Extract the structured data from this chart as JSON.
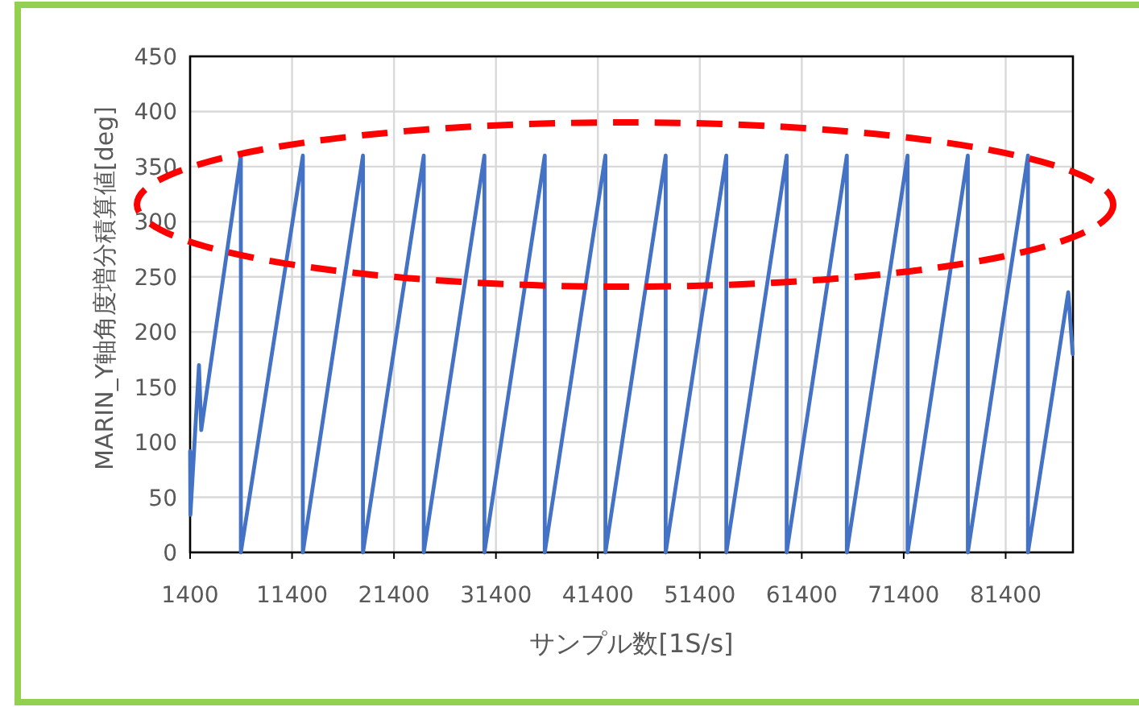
{
  "chart_data": {
    "type": "line",
    "xlabel": "サンプル数[1S/s]",
    "ylabel": "MARIN_Y軸角度増分積算値[deg]",
    "xlim": [
      1400,
      88000
    ],
    "xticks": [
      1400,
      11400,
      21400,
      31400,
      41400,
      51400,
      61400,
      71400,
      81400
    ],
    "ylim": [
      0,
      450
    ],
    "yticks": [
      0,
      50,
      100,
      150,
      200,
      250,
      300,
      350,
      400,
      450
    ],
    "grid": true,
    "series": [
      {
        "color": "#4472c4",
        "x": [
          1400,
          1430,
          2270,
          2490,
          6380,
          6380,
          12460,
          12460,
          18360,
          18360,
          24320,
          24320,
          30270,
          30270,
          36190,
          36190,
          42140,
          42140,
          48050,
          48050,
          54000,
          54000,
          59920,
          59920,
          65820,
          65820,
          71780,
          71780,
          77690,
          77690,
          83590,
          83590,
          87540,
          87970
        ],
        "values": [
          92,
          34,
          170,
          111,
          360,
          0,
          360,
          0,
          360,
          0,
          360,
          0,
          360,
          0,
          360,
          0,
          360,
          0,
          360,
          0,
          360,
          0,
          360,
          0,
          360,
          0,
          360,
          0,
          360,
          0,
          360,
          0,
          236,
          180
        ]
      }
    ]
  }
}
